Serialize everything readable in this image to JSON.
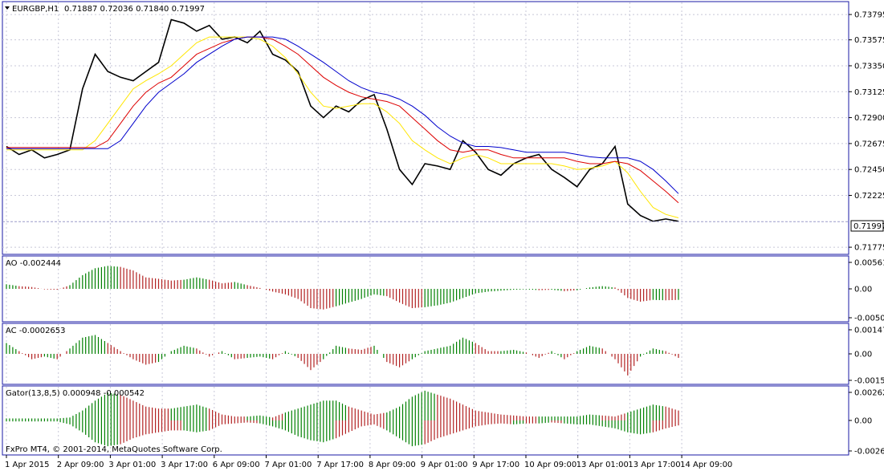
{
  "header": {
    "symbol_label": "EURGBP,H1",
    "ohlc_label": "0.71887 0.72036 0.71840 0.71997"
  },
  "credit": "FxPro MT4, © 2001-2014, MetaQuotes Software Corp.",
  "colors": {
    "bull_bar": "#008000",
    "bear_bar": "#b22222",
    "jaw": "#0000cc",
    "teeth": "#dd0000",
    "lips": "#ffe600",
    "price": "#000000",
    "frame": "#1a1aa6",
    "grid": "#c8c8d8"
  },
  "chart_data": [
    {
      "type": "line",
      "pane": "price",
      "y_ticks": [
        "0.73795",
        "0.73575",
        "0.73350",
        "0.73125",
        "0.72900",
        "0.72675",
        "0.72450",
        "0.72225",
        "0.71775"
      ],
      "ylim": [
        0.7172,
        0.739
      ],
      "current_price": "0.71997",
      "x_labels": [
        "1 Apr 2015",
        "2 Apr 09:00",
        "3 Apr 01:00",
        "3 Apr 17:00",
        "6 Apr 09:00",
        "7 Apr 01:00",
        "7 Apr 17:00",
        "8 Apr 09:00",
        "9 Apr 01:00",
        "9 Apr 17:00",
        "10 Apr 09:00",
        "13 Apr 01:00",
        "13 Apr 17:00",
        "14 Apr 09:00"
      ],
      "series": [
        {
          "name": "",
          "values": [
            0.7265,
            0.7258,
            0.7262,
            0.7255,
            0.7258,
            0.7262,
            0.7315,
            0.7345,
            0.733,
            0.7325,
            0.7322,
            0.733,
            0.7338,
            0.7375,
            0.7372,
            0.7365,
            0.737,
            0.7358,
            0.736,
            0.7355,
            0.7365,
            0.7345,
            0.734,
            0.733,
            0.73,
            0.729,
            0.73,
            0.7295,
            0.7305,
            0.731,
            0.728,
            0.7245,
            0.7232,
            0.725,
            0.7248,
            0.7245,
            0.727,
            0.726,
            0.7245,
            0.724,
            0.725,
            0.7255,
            0.7258,
            0.7245,
            0.7238,
            0.723,
            0.7245,
            0.725,
            0.7265,
            0.7215,
            0.7205,
            0.72,
            0.7202,
            0.72
          ]
        },
        {
          "name": "",
          "values": [
            0.7262,
            0.7262,
            0.7262,
            0.7262,
            0.7262,
            0.7262,
            0.7262,
            0.727,
            0.7285,
            0.73,
            0.7315,
            0.7322,
            0.7328,
            0.7335,
            0.7345,
            0.7355,
            0.736,
            0.736,
            0.736,
            0.736,
            0.7358,
            0.7352,
            0.7342,
            0.7328,
            0.7312,
            0.73,
            0.7298,
            0.73,
            0.7302,
            0.7302,
            0.7295,
            0.7285,
            0.727,
            0.7262,
            0.7255,
            0.725,
            0.7255,
            0.7258,
            0.7255,
            0.725,
            0.725,
            0.725,
            0.725,
            0.725,
            0.7248,
            0.7245,
            0.7246,
            0.7248,
            0.7252,
            0.7242,
            0.7226,
            0.7212,
            0.7206,
            0.7203
          ]
        },
        {
          "name": "",
          "values": [
            0.7264,
            0.7264,
            0.7264,
            0.7264,
            0.7264,
            0.7264,
            0.7264,
            0.7264,
            0.727,
            0.7285,
            0.73,
            0.7312,
            0.732,
            0.7325,
            0.7335,
            0.7345,
            0.735,
            0.7355,
            0.7358,
            0.736,
            0.736,
            0.7358,
            0.7352,
            0.7345,
            0.7335,
            0.7325,
            0.7318,
            0.7312,
            0.7308,
            0.7306,
            0.7304,
            0.73,
            0.729,
            0.728,
            0.727,
            0.7262,
            0.726,
            0.7262,
            0.7262,
            0.7258,
            0.7255,
            0.7255,
            0.7255,
            0.7255,
            0.7255,
            0.7252,
            0.725,
            0.725,
            0.7252,
            0.725,
            0.7244,
            0.7235,
            0.7226,
            0.7216
          ]
        },
        {
          "name": "",
          "values": [
            0.7263,
            0.7263,
            0.7263,
            0.7263,
            0.7263,
            0.7263,
            0.7263,
            0.7263,
            0.7263,
            0.727,
            0.7285,
            0.73,
            0.7312,
            0.732,
            0.7328,
            0.7338,
            0.7345,
            0.7352,
            0.7358,
            0.736,
            0.736,
            0.736,
            0.7358,
            0.7352,
            0.7345,
            0.7338,
            0.733,
            0.7322,
            0.7316,
            0.7312,
            0.731,
            0.7306,
            0.73,
            0.7292,
            0.7282,
            0.7274,
            0.7268,
            0.7265,
            0.7265,
            0.7264,
            0.7262,
            0.726,
            0.726,
            0.726,
            0.726,
            0.7258,
            0.7256,
            0.7255,
            0.7255,
            0.7255,
            0.7252,
            0.7245,
            0.7235,
            0.7224
          ]
        }
      ]
    },
    {
      "type": "bar",
      "pane": "ao",
      "title": "AO -0.002444",
      "y_ticks": [
        "0.005611",
        "0.00",
        "-0.005023"
      ],
      "ylim": [
        -0.007,
        0.007
      ],
      "values": [
        0.001,
        0.0006,
        0.0004,
        -0.0001,
        -0.0002,
        0.0008,
        0.003,
        0.0045,
        0.005,
        0.0048,
        0.004,
        0.0025,
        0.0022,
        0.0018,
        0.002,
        0.0025,
        0.002,
        0.0012,
        0.0015,
        0.0008,
        0.0002,
        -0.0006,
        -0.0012,
        -0.0022,
        -0.0042,
        -0.0045,
        -0.0038,
        -0.003,
        -0.0022,
        -0.0012,
        -0.0016,
        -0.003,
        -0.0042,
        -0.004,
        -0.0036,
        -0.003,
        -0.002,
        -0.001,
        -0.0006,
        -0.0004,
        -0.0002,
        -0.0001,
        -0.0003,
        -0.0002,
        -0.0005,
        -0.0003,
        0.0003,
        0.0006,
        0.0003,
        -0.002,
        -0.0028,
        -0.0024,
        -0.0025,
        -0.0024
      ]
    },
    {
      "type": "bar",
      "pane": "ac",
      "title": "AC -0.0002653",
      "y_ticks": [
        "0.001471",
        "0.00",
        "-0.001542"
      ],
      "ylim": [
        -0.0022,
        0.0022
      ],
      "values": [
        0.0008,
        0.0002,
        -0.0004,
        -0.0002,
        -0.0004,
        0.0004,
        0.0012,
        0.0014,
        0.0008,
        0.0002,
        -0.0004,
        -0.0008,
        -0.0006,
        0.0002,
        0.0006,
        0.0004,
        -0.0002,
        0.0002,
        -0.0004,
        -0.0003,
        -0.0002,
        -0.0004,
        0.0002,
        -0.0003,
        -0.0012,
        -0.0004,
        0.0006,
        0.0004,
        0.0003,
        0.0006,
        -0.0006,
        -0.001,
        -0.0004,
        0.0002,
        0.0004,
        0.0006,
        0.0012,
        0.0008,
        0.0002,
        0.0002,
        0.0003,
        0.0001,
        -0.0003,
        0.0002,
        -0.0004,
        0.0002,
        0.0006,
        0.0004,
        -0.0004,
        -0.0016,
        -0.0002,
        0.0004,
        0.0002,
        -0.0003
      ]
    },
    {
      "type": "bar",
      "pane": "gator",
      "title": "Gator(13,8,5) 0.000948 -0.000542",
      "y_ticks": [
        "0.002623",
        "0.00",
        "-0.002651"
      ],
      "ylim": [
        -0.0034,
        0.0034
      ],
      "upper": [
        0.0002,
        0.0002,
        0.0002,
        0.0002,
        0.0002,
        0.0003,
        0.001,
        0.002,
        0.0028,
        0.0026,
        0.002,
        0.0014,
        0.0012,
        0.0012,
        0.0014,
        0.0016,
        0.0012,
        0.0006,
        0.0004,
        0.0004,
        0.0005,
        0.0003,
        0.0008,
        0.0012,
        0.0016,
        0.002,
        0.002,
        0.0014,
        0.001,
        0.0006,
        0.0008,
        0.0014,
        0.0024,
        0.003,
        0.0026,
        0.0022,
        0.0016,
        0.001,
        0.0008,
        0.0006,
        0.0005,
        0.0004,
        0.0004,
        0.0004,
        0.0004,
        0.0004,
        0.0006,
        0.0005,
        0.0004,
        0.0008,
        0.0012,
        0.0016,
        0.0014,
        0.001
      ],
      "lower": [
        -0.0001,
        -0.0001,
        -0.0001,
        -0.0001,
        -0.0001,
        -0.0004,
        -0.0012,
        -0.0022,
        -0.0026,
        -0.0024,
        -0.0018,
        -0.0014,
        -0.0012,
        -0.001,
        -0.001,
        -0.0012,
        -0.001,
        -0.0004,
        -0.0003,
        -0.0002,
        -0.0003,
        -0.0006,
        -0.001,
        -0.0016,
        -0.002,
        -0.0022,
        -0.0018,
        -0.0012,
        -0.0006,
        -0.0004,
        -0.001,
        -0.0018,
        -0.0026,
        -0.0024,
        -0.0018,
        -0.0014,
        -0.001,
        -0.0006,
        -0.0004,
        -0.0003,
        -0.0004,
        -0.0003,
        -0.0003,
        -0.0002,
        -0.0003,
        -0.0004,
        -0.0004,
        -0.0006,
        -0.0008,
        -0.0012,
        -0.0014,
        -0.0012,
        -0.0008,
        -0.0005
      ]
    }
  ]
}
